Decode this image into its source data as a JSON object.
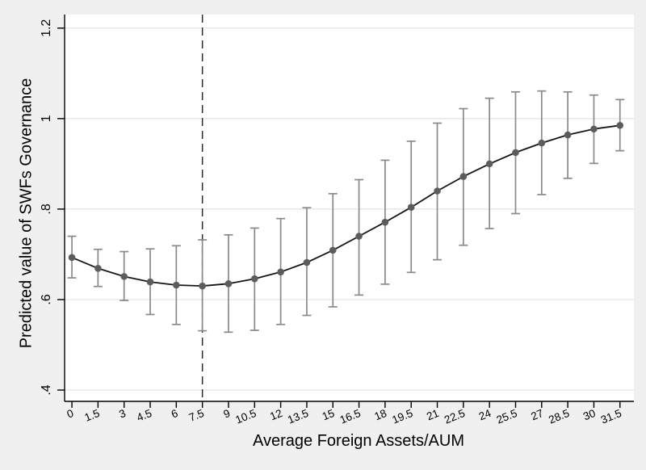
{
  "figure": {
    "background_color": "#f0f0f0",
    "plot_background_color": "#ffffff",
    "grid_color": "#e3e3e3",
    "axis_color": "#000000",
    "tick_color": "#000000",
    "marker_color": "#5c5c5c",
    "ci_color": "#8a8a8a",
    "fit_line_color": "#161616",
    "reference_line_color": "#2b2b2b"
  },
  "chart_data": {
    "type": "line",
    "title": "",
    "xlabel": "Average Foreign Assets/AUM",
    "ylabel": "Predicted value of SWFs Governance",
    "x": [
      0,
      1.5,
      3,
      4.5,
      6,
      7.5,
      9,
      10.5,
      12,
      13.5,
      15,
      16.5,
      18,
      19.5,
      21,
      22.5,
      24,
      25.5,
      27,
      28.5,
      30,
      31.5
    ],
    "xtick_labels": [
      "0",
      "1.5",
      "3",
      "4.5",
      "6",
      "7.5",
      "9",
      "10.5",
      "12",
      "13.5",
      "15",
      "16.5",
      "18",
      "19.5",
      "21",
      "22.5",
      "24",
      "25.5",
      "27",
      "28.5",
      "30",
      "31.5"
    ],
    "series": [
      {
        "name": "Predicted value of SWFs Governance",
        "values": [
          0.693,
          0.669,
          0.651,
          0.639,
          0.632,
          0.63,
          0.635,
          0.646,
          0.661,
          0.682,
          0.709,
          0.74,
          0.771,
          0.804,
          0.84,
          0.872,
          0.9,
          0.925,
          0.946,
          0.964,
          0.977,
          0.985
        ],
        "ci_upper": [
          0.74,
          0.711,
          0.706,
          0.712,
          0.719,
          0.732,
          0.743,
          0.758,
          0.779,
          0.803,
          0.834,
          0.865,
          0.908,
          0.95,
          0.99,
          1.022,
          1.045,
          1.059,
          1.061,
          1.059,
          1.052,
          1.042
        ],
        "ci_lower": [
          0.648,
          0.629,
          0.598,
          0.567,
          0.545,
          0.531,
          0.528,
          0.532,
          0.545,
          0.565,
          0.584,
          0.61,
          0.634,
          0.66,
          0.688,
          0.72,
          0.757,
          0.79,
          0.832,
          0.868,
          0.901,
          0.929
        ]
      }
    ],
    "yticks": [
      0.4,
      0.6,
      0.8,
      1.0,
      1.2
    ],
    "ytick_labels": [
      ".4",
      ".6",
      ".8",
      "1",
      "1.2"
    ],
    "ylim": [
      0.375,
      1.23
    ],
    "xlim": [
      -0.42,
      32.3
    ],
    "reference_line_x": 7.5,
    "grid": "horizontal",
    "legend_position": "none",
    "error_bars": true
  }
}
